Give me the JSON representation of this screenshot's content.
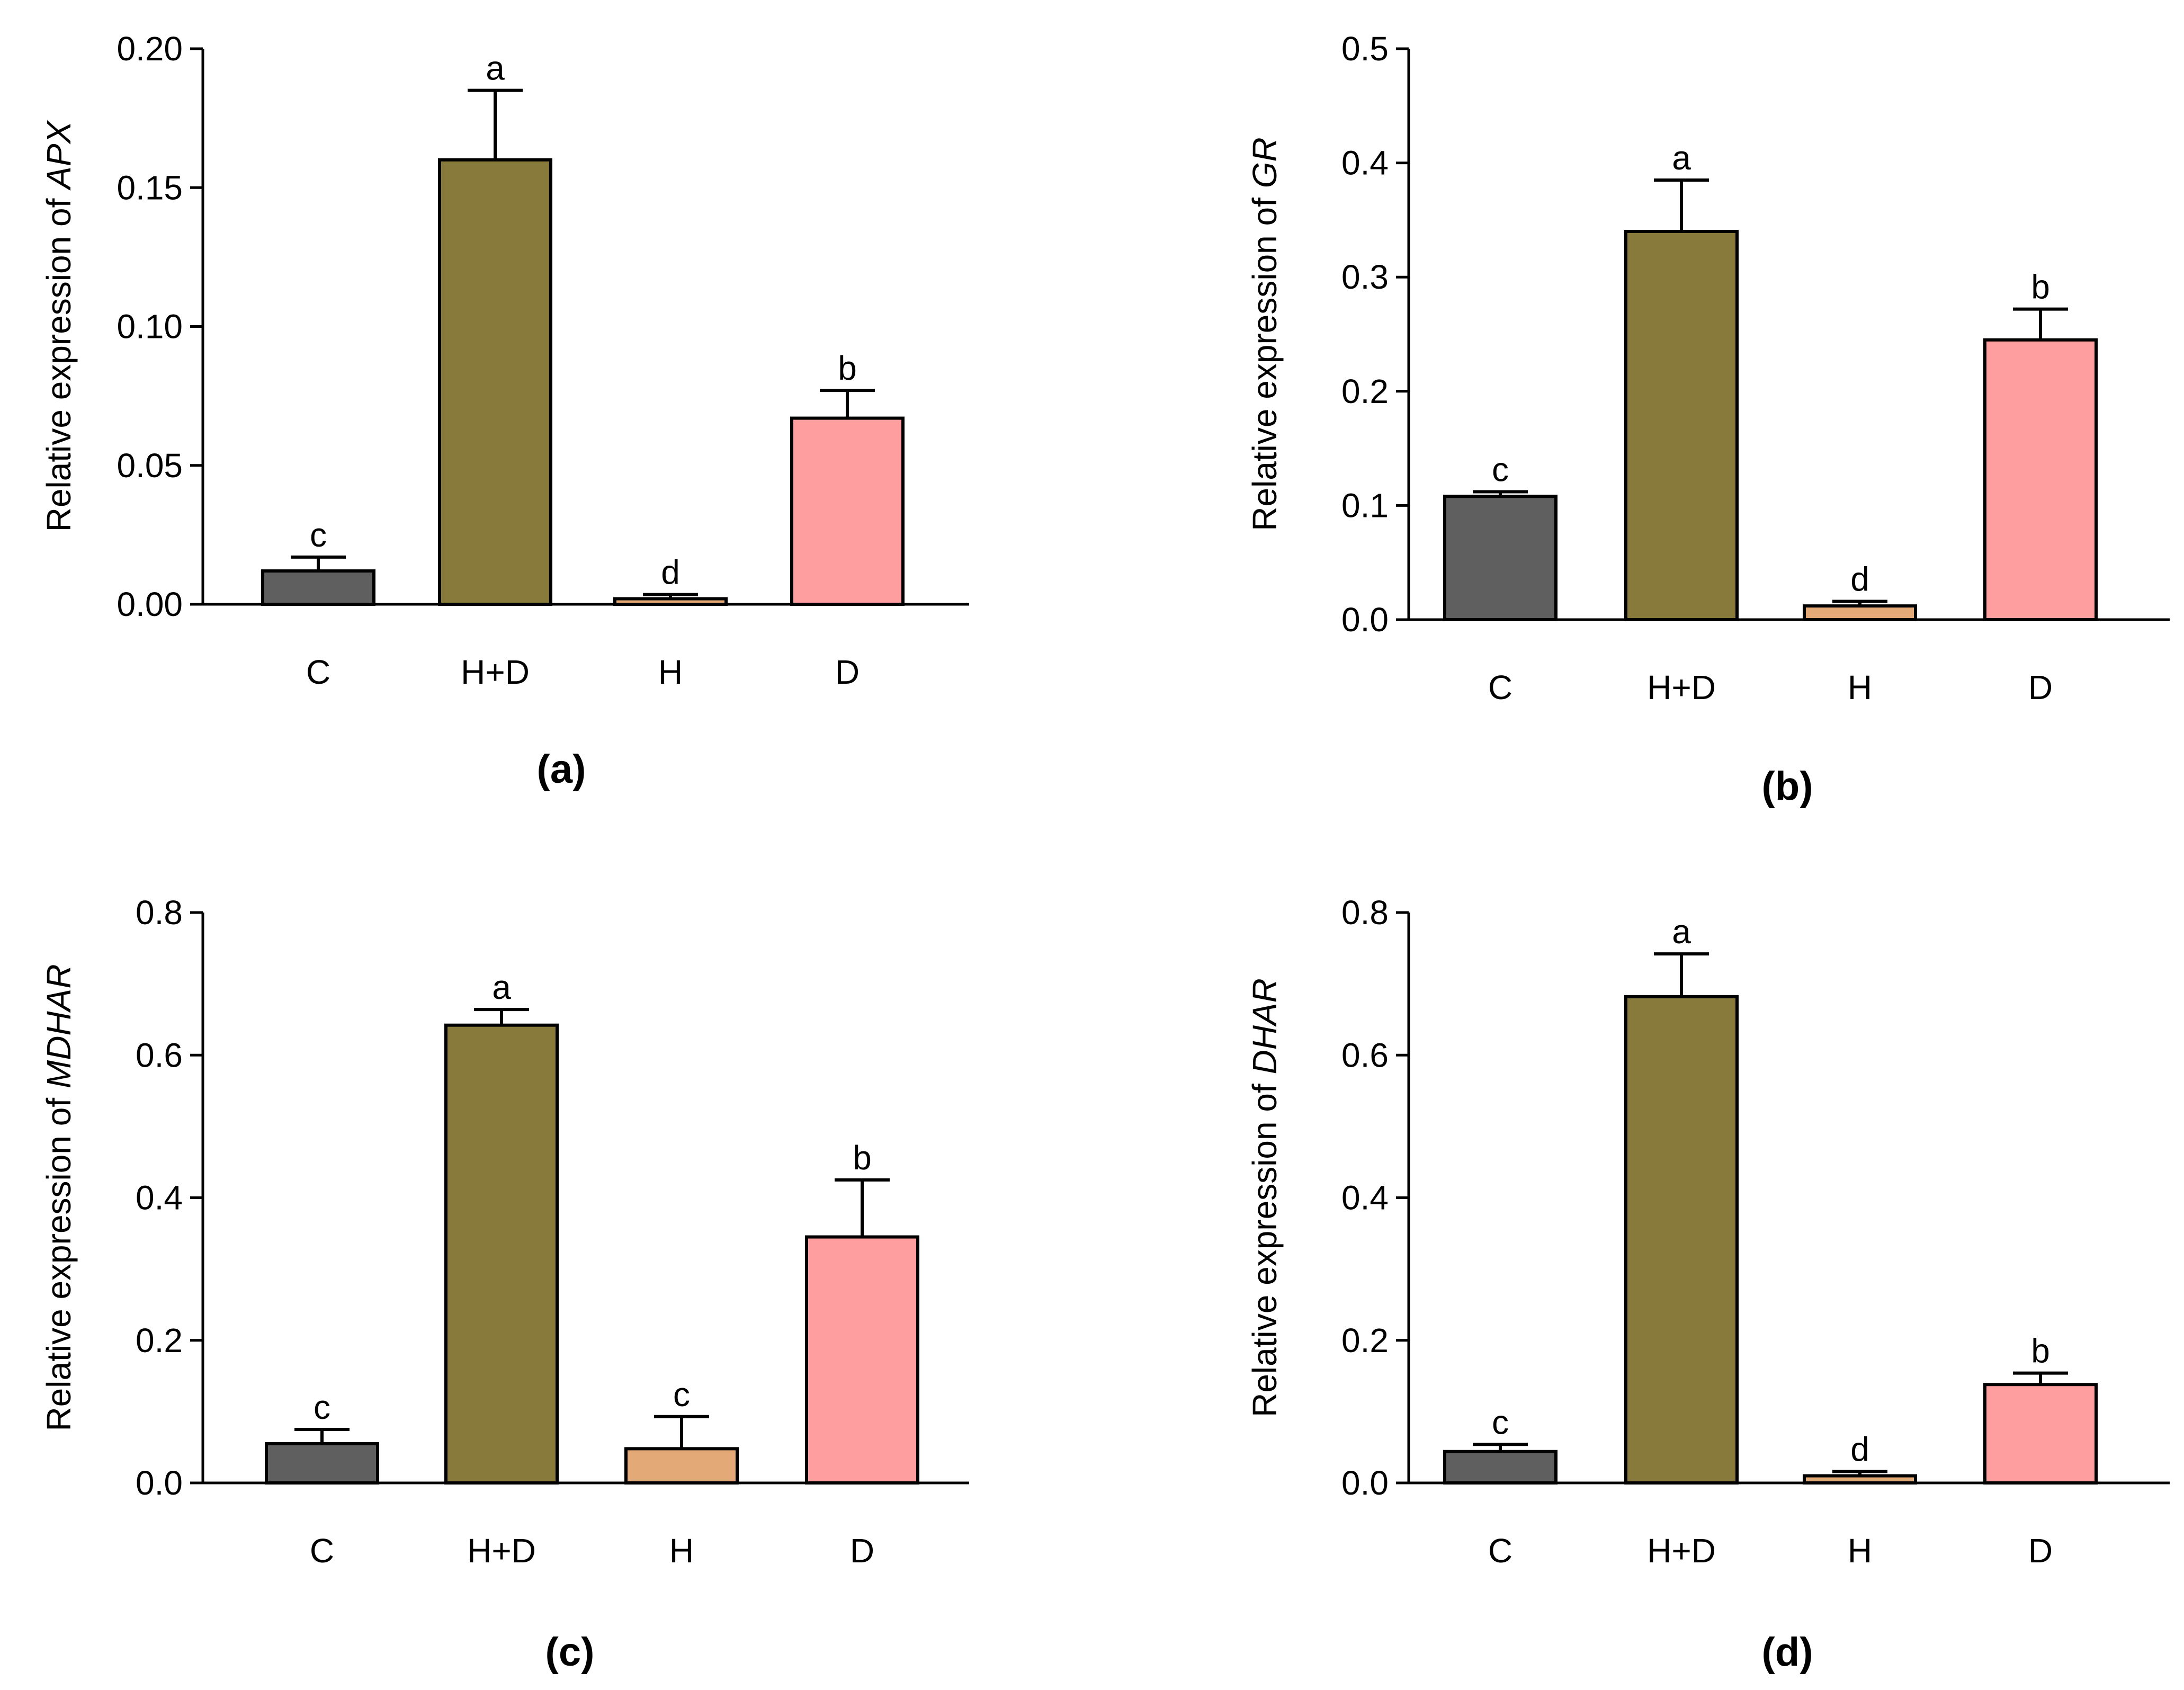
{
  "colors": {
    "C": "#5f5f5f",
    "H+D": "#877a3a",
    "H": "#e3aa77",
    "D": "#fe9e9e",
    "axis": "#000000"
  },
  "chart_data": [
    {
      "type": "bar",
      "caption": "(a)",
      "ylabel": "Relative expression of ",
      "gene": "APX",
      "categories": [
        "C",
        "H+D",
        "H",
        "D"
      ],
      "values": [
        0.012,
        0.16,
        0.002,
        0.067
      ],
      "errors": [
        0.005,
        0.025,
        0.0015,
        0.01
      ],
      "letters": [
        "c",
        "a",
        "d",
        "b"
      ],
      "ylim": [
        0,
        0.2
      ],
      "yticks": [
        0.0,
        0.05,
        0.1,
        0.15,
        0.2
      ],
      "ytick_labels": [
        "0.00",
        "0.05",
        "0.10",
        "0.15",
        "0.20"
      ]
    },
    {
      "type": "bar",
      "caption": "(b)",
      "ylabel": "Relative expression of ",
      "gene": "GR",
      "categories": [
        "C",
        "H+D",
        "H",
        "D"
      ],
      "values": [
        0.108,
        0.34,
        0.012,
        0.245
      ],
      "errors": [
        0.004,
        0.045,
        0.004,
        0.027
      ],
      "letters": [
        "c",
        "a",
        "d",
        "b"
      ],
      "ylim": [
        0,
        0.5
      ],
      "yticks": [
        0.0,
        0.1,
        0.2,
        0.3,
        0.4,
        0.5
      ],
      "ytick_labels": [
        "0.0",
        "0.1",
        "0.2",
        "0.3",
        "0.4",
        "0.5"
      ]
    },
    {
      "type": "bar",
      "caption": "(c)",
      "ylabel": "Relative expression of ",
      "gene": "MDHAR",
      "categories": [
        "C",
        "H+D",
        "H",
        "D"
      ],
      "values": [
        0.055,
        0.642,
        0.048,
        0.345
      ],
      "errors": [
        0.02,
        0.022,
        0.045,
        0.08
      ],
      "letters": [
        "c",
        "a",
        "c",
        "b"
      ],
      "ylim": [
        0,
        0.8
      ],
      "yticks": [
        0.0,
        0.2,
        0.4,
        0.6,
        0.8
      ],
      "ytick_labels": [
        "0.0",
        "0.2",
        "0.4",
        "0.6",
        "0.8"
      ]
    },
    {
      "type": "bar",
      "caption": "(d)",
      "ylabel": "Relative expression of ",
      "gene": "DHAR",
      "categories": [
        "C",
        "H+D",
        "H",
        "D"
      ],
      "values": [
        0.044,
        0.682,
        0.01,
        0.138
      ],
      "errors": [
        0.01,
        0.06,
        0.006,
        0.016
      ],
      "letters": [
        "c",
        "a",
        "d",
        "b"
      ],
      "ylim": [
        0,
        0.8
      ],
      "yticks": [
        0.0,
        0.2,
        0.4,
        0.6,
        0.8
      ],
      "ytick_labels": [
        "0.0",
        "0.2",
        "0.4",
        "0.6",
        "0.8"
      ]
    }
  ]
}
